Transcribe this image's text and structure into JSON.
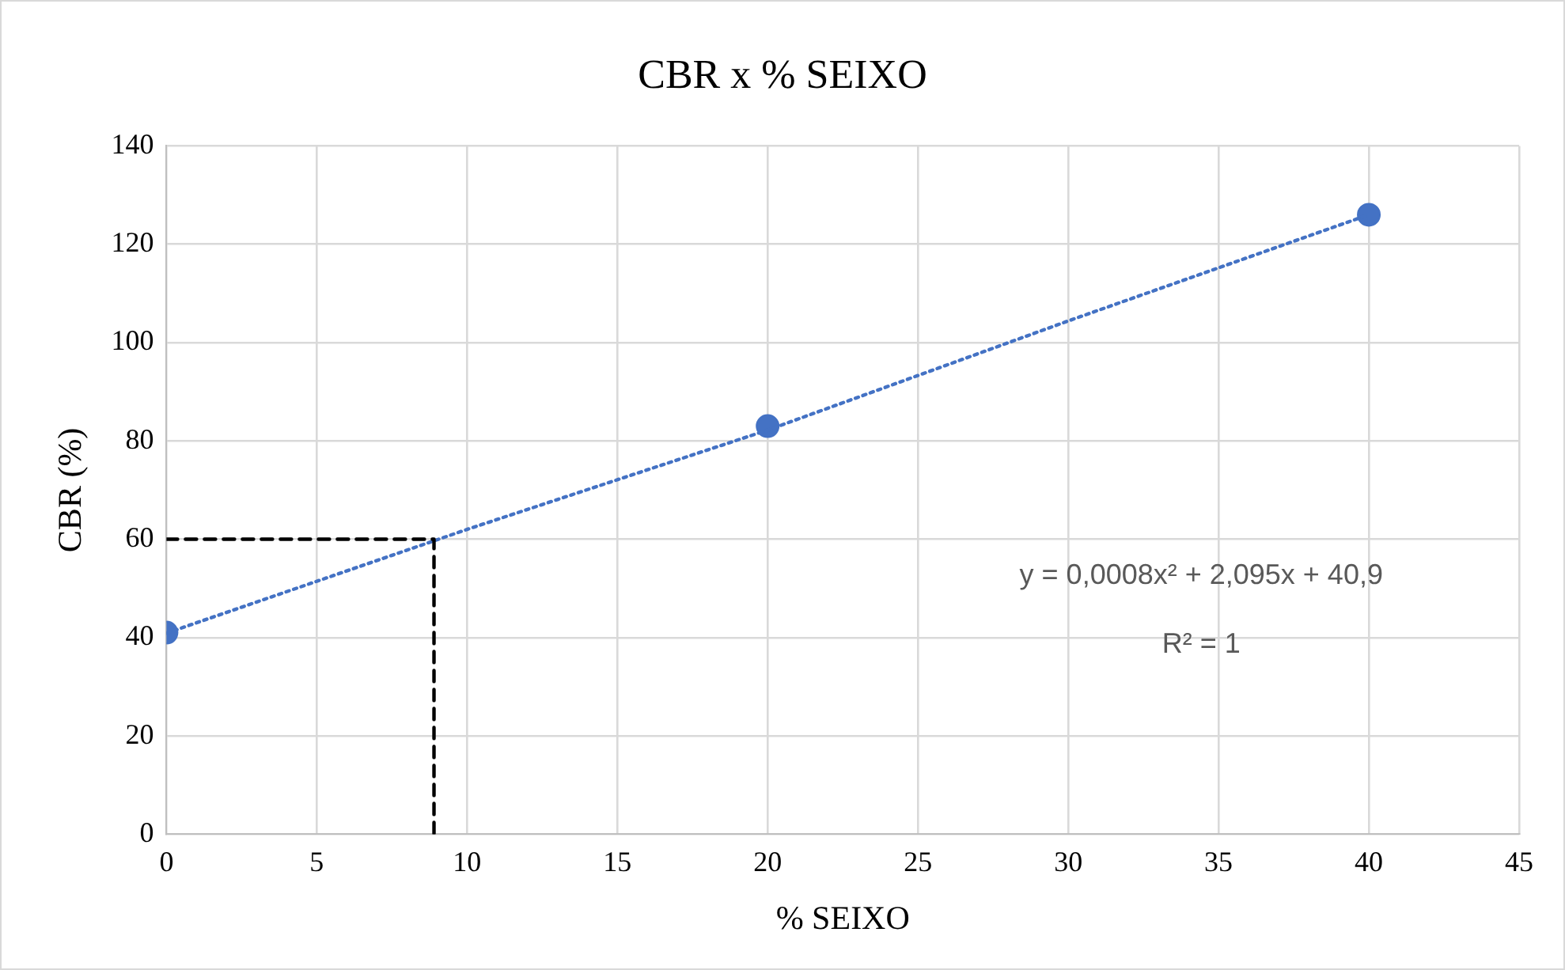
{
  "chart_data": {
    "type": "scatter",
    "title": "CBR x % SEIXO",
    "xlabel": "% SEIXO",
    "ylabel": "CBR (%)",
    "xlim": [
      0,
      45
    ],
    "xticks": [
      0,
      5,
      10,
      15,
      20,
      25,
      30,
      35,
      40,
      45
    ],
    "ylim": [
      0,
      140
    ],
    "yticks": [
      0,
      20,
      40,
      60,
      80,
      100,
      120,
      140
    ],
    "grid": true,
    "legend": false,
    "marker": "circle",
    "annotations": [
      "y = 0,0008x² + 2,095x + 40,9",
      "R² = 1"
    ],
    "series": [
      {
        "type": "scatter",
        "color": "#4472c4",
        "x": [
          0,
          20,
          40
        ],
        "values": [
          41,
          83,
          126
        ]
      },
      {
        "type": "line",
        "color": "#4472c4",
        "line_style": "dotted",
        "marker": "none",
        "x": [
          0,
          10,
          20,
          30,
          40
        ],
        "values": [
          40.9,
          62,
          82.2,
          104.4,
          126
        ]
      },
      {
        "type": "line",
        "color": "#000000",
        "line_style": "dashed",
        "marker": "none",
        "x": [
          0,
          8.9,
          8.9
        ],
        "values": [
          60,
          60,
          0
        ]
      }
    ]
  }
}
